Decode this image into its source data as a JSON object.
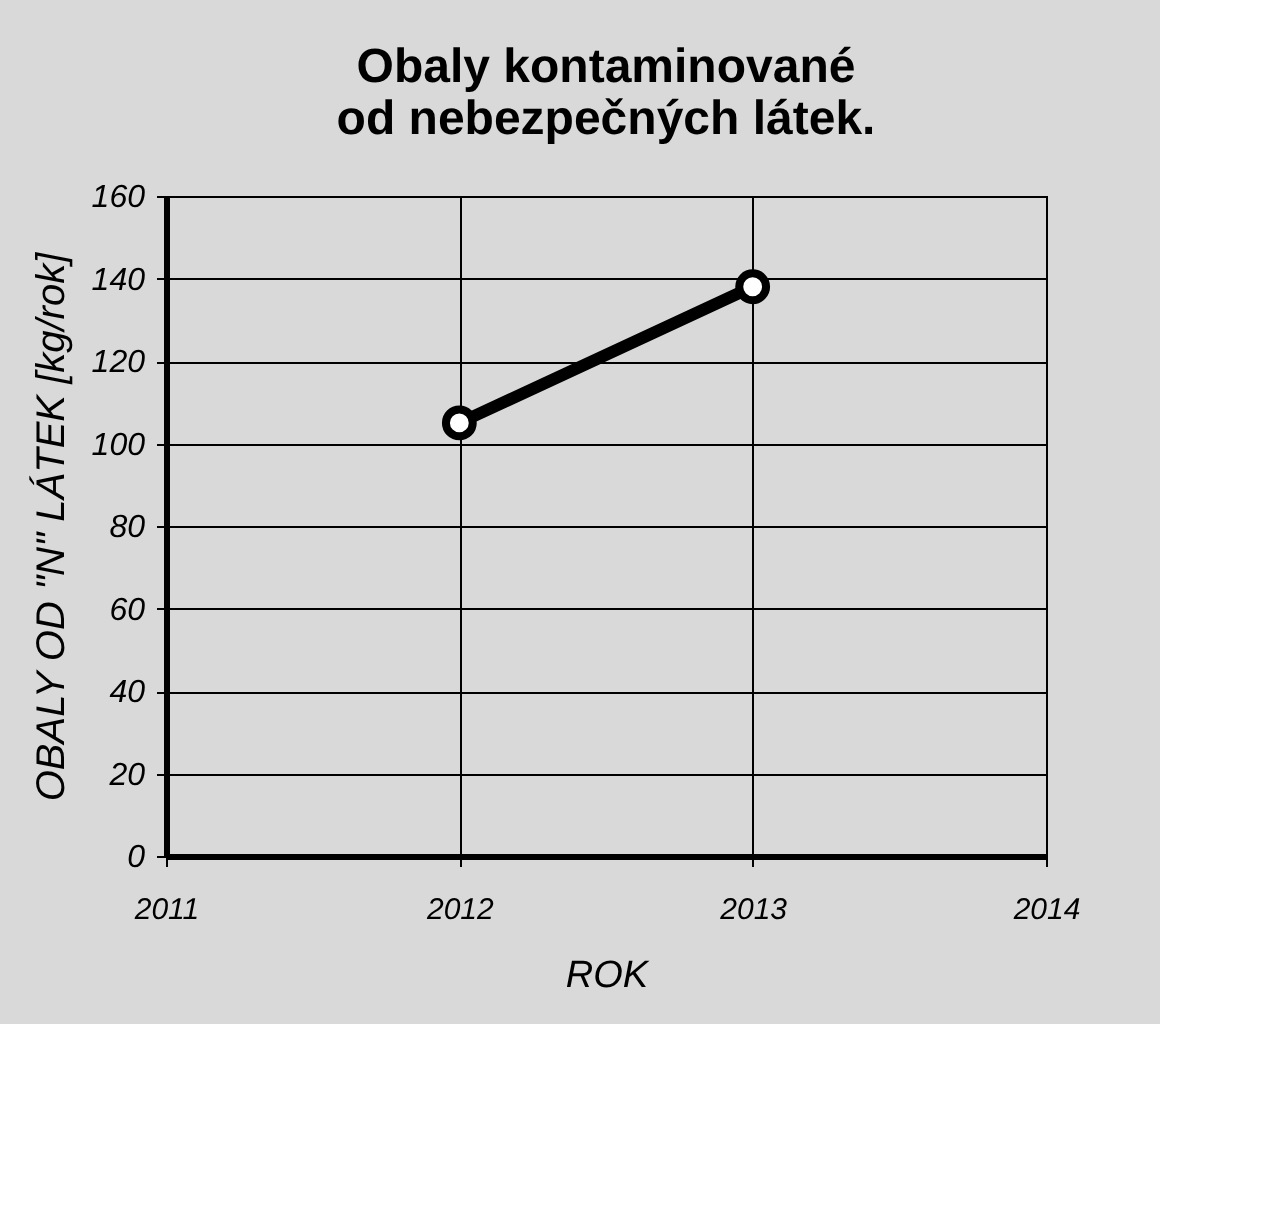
{
  "chart_data": {
    "type": "line",
    "title": "Obaly kontaminované od nebezpečných látek.",
    "xlabel": "ROK",
    "ylabel": "OBALY OD \"N\" LÁTEK [kg/rok]",
    "x": [
      2012,
      2013
    ],
    "series": [
      {
        "color": "#000000",
        "values": [
          105,
          138
        ]
      }
    ],
    "xlim": [
      2011,
      2014
    ],
    "xticks": [
      2011,
      2012,
      2013,
      2014
    ],
    "ylim": [
      0,
      160
    ],
    "yticks": [
      0,
      20,
      40,
      60,
      80,
      100,
      120,
      140,
      160
    ],
    "grid": true,
    "marker": "circle",
    "line_style": "solid"
  }
}
